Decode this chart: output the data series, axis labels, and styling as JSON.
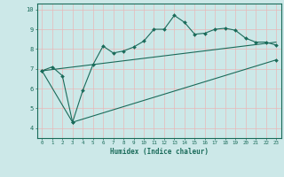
{
  "bg_color": "#cce8e8",
  "grid_color": "#e8b8b8",
  "line_color": "#1a6b5a",
  "xlabel": "Humidex (Indice chaleur)",
  "xlim": [
    -0.5,
    23.5
  ],
  "ylim": [
    3.5,
    10.3
  ],
  "yticks": [
    4,
    5,
    6,
    7,
    8,
    9,
    10
  ],
  "xticks": [
    0,
    1,
    2,
    3,
    4,
    5,
    6,
    7,
    8,
    9,
    10,
    11,
    12,
    13,
    14,
    15,
    16,
    17,
    18,
    19,
    20,
    21,
    22,
    23
  ],
  "line1_x": [
    0,
    1,
    2,
    3,
    4,
    5,
    6,
    7,
    8,
    9,
    10,
    11,
    12,
    13,
    14,
    15,
    16,
    17,
    18,
    19,
    20,
    21,
    22,
    23
  ],
  "line1_y": [
    6.9,
    7.1,
    6.65,
    4.3,
    5.9,
    7.2,
    8.15,
    7.8,
    7.9,
    8.1,
    8.4,
    9.0,
    9.0,
    9.7,
    9.35,
    8.75,
    8.8,
    9.0,
    9.05,
    8.95,
    8.55,
    8.35,
    8.35,
    8.2
  ],
  "line2_x": [
    0,
    23
  ],
  "line2_y": [
    6.9,
    8.35
  ],
  "line3_x": [
    0,
    3,
    23
  ],
  "line3_y": [
    6.9,
    4.3,
    7.45
  ]
}
